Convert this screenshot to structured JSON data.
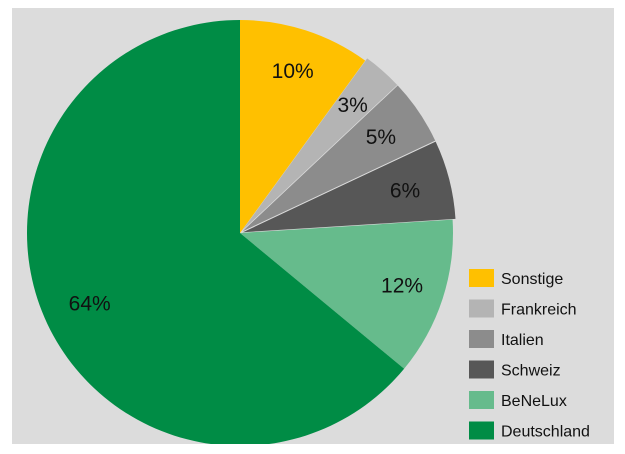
{
  "chart_data": {
    "type": "pie",
    "title": "",
    "legend_position": "right",
    "slices": [
      {
        "name": "Sonstige",
        "value": 10,
        "label": "10%",
        "color": "#ffc000"
      },
      {
        "name": "Frankreich",
        "value": 3,
        "label": "3%",
        "color": "#b4b4b4"
      },
      {
        "name": "Italien",
        "value": 5,
        "label": "5%",
        "color": "#8c8c8c"
      },
      {
        "name": "Schweiz",
        "value": 6,
        "label": "6%",
        "color": "#575757"
      },
      {
        "name": "BeNeLux",
        "value": 12,
        "label": "12%",
        "color": "#66bb8c"
      },
      {
        "name": "Deutschland",
        "value": 64,
        "label": "64%",
        "color": "#008c45"
      }
    ]
  }
}
